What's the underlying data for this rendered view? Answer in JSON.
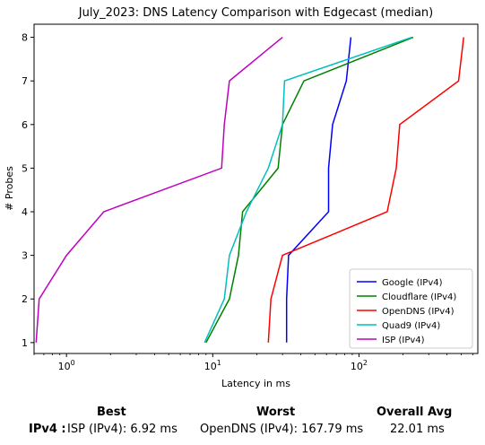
{
  "chart_data": {
    "type": "line",
    "title": "July_2023: DNS Latency Comparison with Edgecast (median)",
    "xlabel": "Latency in ms",
    "ylabel": "# Probes",
    "xscale": "log",
    "xlim": [
      0.6,
      650
    ],
    "ylim": [
      0.75,
      8.3
    ],
    "x_ticks": [
      {
        "value": 1,
        "label": "10^0"
      },
      {
        "value": 10,
        "label": "10^1"
      },
      {
        "value": 100,
        "label": "10^2"
      }
    ],
    "y_ticks": [
      1,
      2,
      3,
      4,
      5,
      6,
      7,
      8
    ],
    "legend": "bottom-right",
    "grid": false,
    "series": [
      {
        "name": "Google (IPv4)",
        "color": "#0000ff",
        "points": [
          [
            32,
            1
          ],
          [
            32,
            2
          ],
          [
            33,
            3
          ],
          [
            62,
            4
          ],
          [
            62,
            5
          ],
          [
            66,
            6
          ],
          [
            82,
            7
          ],
          [
            88,
            8
          ]
        ]
      },
      {
        "name": "Cloudflare (IPv4)",
        "color": "#008000",
        "points": [
          [
            9,
            1
          ],
          [
            13,
            2
          ],
          [
            15,
            3
          ],
          [
            16,
            4
          ],
          [
            28,
            5
          ],
          [
            30,
            6
          ],
          [
            42,
            7
          ],
          [
            235,
            8
          ]
        ]
      },
      {
        "name": "OpenDNS (IPv4)",
        "color": "#ff0000",
        "points": [
          [
            24,
            1
          ],
          [
            25,
            2
          ],
          [
            30,
            3
          ],
          [
            156,
            4
          ],
          [
            180,
            5
          ],
          [
            190,
            6
          ],
          [
            480,
            7
          ],
          [
            520,
            8
          ]
        ]
      },
      {
        "name": "Quad9 (IPv4)",
        "color": "#00bfbf",
        "points": [
          [
            8.8,
            1
          ],
          [
            12,
            2
          ],
          [
            13,
            3
          ],
          [
            17,
            4
          ],
          [
            24,
            5
          ],
          [
            30,
            6
          ],
          [
            31,
            7
          ],
          [
            230,
            8
          ]
        ]
      },
      {
        "name": "ISP (IPv4)",
        "color": "#bf00bf",
        "points": [
          [
            0.62,
            1
          ],
          [
            0.65,
            2
          ],
          [
            1.0,
            3
          ],
          [
            1.8,
            4
          ],
          [
            11.5,
            5
          ],
          [
            12,
            6
          ],
          [
            13,
            7
          ],
          [
            30,
            8
          ]
        ]
      }
    ]
  },
  "summary": {
    "headers": {
      "best": "Best",
      "worst": "Worst",
      "avg": "Overall Avg"
    },
    "row": {
      "label": "IPv4 :",
      "best": "ISP (IPv4): 6.92 ms",
      "worst": "OpenDNS (IPv4): 167.79 ms",
      "avg": "22.01 ms"
    }
  }
}
